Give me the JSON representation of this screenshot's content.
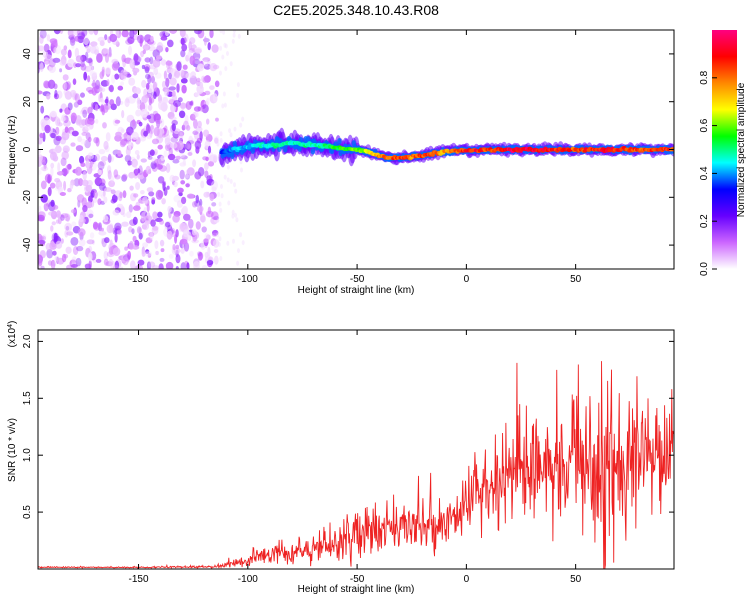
{
  "title": "C2E5.2025.348.10.43.R08",
  "chart_data": [
    {
      "type": "heatmap",
      "name": "spectrogram",
      "xlabel": "Height of straight line (km)",
      "ylabel": "Frequency (Hz)",
      "xlim": [
        -196,
        95
      ],
      "ylim": [
        -50,
        50
      ],
      "xticks": [
        -150,
        -100,
        -50,
        0,
        50
      ],
      "yticks": [
        -40,
        -20,
        0,
        20,
        40
      ],
      "noise_region_x": [
        -196,
        -114
      ],
      "ridge": {
        "x": [
          -112,
          -105,
          -100,
          -95,
          -90,
          -85,
          -80,
          -75,
          -70,
          -65,
          -60,
          -55,
          -50,
          -45,
          -40,
          -35,
          -30,
          -25,
          -20,
          -15,
          -10,
          -5,
          0,
          5,
          10,
          15,
          20,
          30,
          40,
          50,
          60,
          70,
          80,
          90,
          95
        ],
        "freq": [
          -1.5,
          0.5,
          1,
          2,
          1.5,
          2,
          3,
          2,
          2,
          1.5,
          1,
          0,
          0,
          -1,
          -2.5,
          -3.5,
          -3.5,
          -3,
          -2.5,
          -1.5,
          -1,
          -0.5,
          -0.5,
          -0.5,
          0,
          0,
          0,
          0,
          0,
          0,
          0,
          0,
          0,
          0,
          0
        ],
        "amplitude": [
          0.35,
          0.45,
          0.45,
          0.5,
          0.5,
          0.55,
          0.5,
          0.55,
          0.5,
          0.55,
          0.6,
          0.6,
          0.65,
          0.7,
          0.85,
          0.9,
          0.9,
          0.85,
          0.9,
          0.9,
          0.8,
          0.85,
          0.95,
          0.95,
          0.9,
          0.95,
          1.0,
          1.0,
          0.95,
          0.9,
          0.95,
          0.95,
          0.9,
          0.95,
          0.9
        ]
      },
      "colorbar": {
        "label": "Normalized spectral amplitude",
        "range": [
          0,
          1
        ],
        "ticks": [
          "0.0",
          "0.2",
          "0.4",
          "0.6",
          "0.8"
        ],
        "colors": [
          "#ffffff",
          "#cc66ff",
          "#6600ff",
          "#0000ff",
          "#00ffff",
          "#00ff00",
          "#ffff00",
          "#ff8800",
          "#ff0000",
          "#ff0080"
        ]
      }
    },
    {
      "type": "line",
      "name": "snr",
      "xlabel": "Height of straight line (km)",
      "ylabel": "SNR (10 * v/v)",
      "exponent_label": "(x10",
      "exponent_power": "4",
      "exponent_close": ")",
      "xlim": [
        -196,
        95
      ],
      "ylim": [
        0,
        2.1
      ],
      "xticks": [
        -150,
        -100,
        -50,
        0,
        50
      ],
      "yticks": [
        "0.5",
        "1.0",
        "1.5",
        "2.0"
      ],
      "color": "#ee2222",
      "envelope": {
        "x": [
          -196,
          -150,
          -115,
          -105,
          -100,
          -90,
          -80,
          -70,
          -60,
          -50,
          -40,
          -30,
          -20,
          -10,
          -5,
          0,
          5,
          10,
          20,
          30,
          40,
          50,
          55,
          60,
          65,
          70,
          75,
          80,
          85,
          90,
          95
        ],
        "mean": [
          0.015,
          0.015,
          0.02,
          0.05,
          0.08,
          0.13,
          0.15,
          0.18,
          0.22,
          0.3,
          0.32,
          0.36,
          0.35,
          0.42,
          0.45,
          0.55,
          0.65,
          0.7,
          0.8,
          0.85,
          0.9,
          0.9,
          0.95,
          0.95,
          1.0,
          0.95,
          0.95,
          1.0,
          1.0,
          0.95,
          1.0
        ],
        "spread": [
          0.005,
          0.005,
          0.01,
          0.03,
          0.05,
          0.08,
          0.1,
          0.12,
          0.15,
          0.2,
          0.22,
          0.25,
          0.2,
          0.2,
          0.15,
          0.25,
          0.3,
          0.3,
          0.4,
          0.4,
          0.45,
          0.5,
          0.7,
          1.0,
          0.8,
          0.6,
          0.55,
          0.5,
          0.45,
          0.4,
          0.4
        ]
      }
    }
  ]
}
